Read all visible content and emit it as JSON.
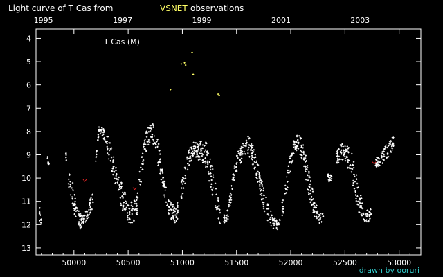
{
  "chart_data": {
    "type": "scatter",
    "title_prefix": "Light curve of T Cas from",
    "title_source": "VSNET",
    "title_suffix": "observations",
    "object_label": "T Cas (M)",
    "credit": "drawn by ooruri",
    "x_axis": {
      "range": [
        49650,
        53200
      ],
      "ticks": [
        50000,
        50500,
        51000,
        51500,
        52000,
        52500,
        53000
      ],
      "tick_labels": [
        "50000",
        "50500",
        "51000",
        "51500",
        "52000",
        "52500",
        "53000"
      ]
    },
    "top_axis": {
      "year_labels": [
        {
          "label": "1995",
          "x": 49718
        },
        {
          "label": "1997",
          "x": 50449
        },
        {
          "label": "1999",
          "x": 51179
        },
        {
          "label": "2001",
          "x": 51910
        },
        {
          "label": "2003",
          "x": 52640
        }
      ]
    },
    "y_axis": {
      "range": [
        3.6,
        13.3
      ],
      "inverted": true,
      "ticks": [
        4,
        5,
        6,
        7,
        8,
        9,
        10,
        11,
        12,
        13
      ],
      "tick_labels": [
        "4",
        "5",
        "6",
        "7",
        "8",
        "9",
        "10",
        "11",
        "12",
        "13"
      ]
    },
    "colors": {
      "background": "#000000",
      "axis": "#ffffff",
      "visual": "#ffffff",
      "highlight": "#ffff66",
      "fainter_than": "#dd2222",
      "credit": "#33cccc"
    },
    "series": [
      {
        "kind": "visual",
        "note": "envelope of visual estimates",
        "segments": [
          {
            "x": [
              49680,
              49695,
              49700
            ],
            "ymin": [
              11.0,
              11.4,
              11.2
            ],
            "ymax": [
              11.9,
              12.0,
              11.8
            ]
          },
          {
            "x": [
              49750,
              49760,
              49770
            ],
            "ymin": [
              9.0,
              9.1,
              9.3
            ],
            "ymax": [
              9.6,
              9.5,
              9.4
            ]
          },
          {
            "x": [
              49920,
              49930
            ],
            "ymin": [
              8.4,
              9.0
            ],
            "ymax": [
              8.6,
              9.6
            ]
          },
          {
            "x": [
              49950,
              49980,
              50000,
              50030,
              50060,
              50090,
              50120,
              50150,
              50180
            ],
            "ymin": [
              9.5,
              9.9,
              10.6,
              11.2,
              11.5,
              11.6,
              11.3,
              10.9,
              10.6
            ],
            "ymax": [
              10.4,
              10.9,
              11.5,
              12.0,
              12.2,
              12.0,
              11.8,
              11.6,
              11.2
            ]
          },
          {
            "x": [
              50200,
              50230,
              50260,
              50290,
              50320,
              50350,
              50380,
              50410,
              50440,
              50470,
              50500,
              50530,
              50560,
              50590
            ],
            "ymin": [
              9.2,
              7.8,
              7.8,
              7.9,
              8.3,
              8.7,
              9.2,
              9.7,
              10.2,
              10.6,
              10.9,
              11.0,
              10.9,
              10.6
            ],
            "ymax": [
              9.5,
              8.0,
              8.2,
              8.6,
              9.2,
              9.7,
              10.2,
              10.8,
              11.3,
              11.6,
              11.9,
              12.0,
              11.8,
              11.5
            ]
          },
          {
            "x": [
              50600,
              50630,
              50660,
              50690,
              50720,
              50750,
              50780,
              50810,
              50840,
              50870,
              50900,
              50930,
              50960
            ],
            "ymin": [
              9.8,
              8.8,
              8.1,
              7.7,
              7.6,
              7.9,
              8.5,
              9.4,
              10.2,
              10.8,
              11.1,
              11.2,
              11.0
            ],
            "ymax": [
              10.9,
              9.8,
              9.0,
              8.6,
              8.4,
              8.8,
              9.6,
              10.4,
              11.0,
              11.5,
              11.8,
              12.0,
              11.8
            ]
          },
          {
            "x": [
              50990,
              51020,
              51050,
              51080,
              51110,
              51140,
              51170,
              51200,
              51230,
              51260,
              51290,
              51320,
              51350
            ],
            "ymin": [
              10.2,
              9.4,
              8.8,
              8.6,
              8.4,
              8.5,
              8.4,
              8.3,
              8.5,
              9.0,
              9.8,
              10.6,
              11.3
            ],
            "ymax": [
              11.0,
              10.4,
              9.6,
              9.3,
              9.1,
              9.2,
              9.3,
              9.4,
              9.8,
              10.4,
              11.0,
              11.6,
              12.0
            ]
          },
          {
            "x": [
              51380,
              51400,
              51420,
              51440,
              51460,
              51490,
              51520,
              51550,
              51580,
              51610,
              51640,
              51670,
              51700,
              51730,
              51760,
              51790,
              51820,
              51850,
              51880,
              51900
            ],
            "ymin": [
              11.5,
              11.6,
              11.3,
              10.7,
              9.9,
              9.2,
              8.8,
              8.6,
              8.3,
              8.2,
              8.4,
              8.9,
              9.4,
              10.0,
              10.6,
              11.1,
              11.4,
              11.7,
              11.8,
              11.6
            ],
            "ymax": [
              12.0,
              12.0,
              11.8,
              11.3,
              10.7,
              9.9,
              9.5,
              9.3,
              9.1,
              9.0,
              9.3,
              9.8,
              10.4,
              11.0,
              11.5,
              11.9,
              12.1,
              12.2,
              12.3,
              12.0
            ]
          },
          {
            "x": [
              51920,
              51950,
              51980,
              52010,
              52040,
              52070,
              52100,
              52130,
              52160,
              52190,
              52220,
              52250,
              52280,
              52300
            ],
            "ymin": [
              11.0,
              10.2,
              9.4,
              8.7,
              8.2,
              8.1,
              8.3,
              8.8,
              9.5,
              10.2,
              10.8,
              11.3,
              11.5,
              11.4
            ],
            "ymax": [
              11.8,
              11.0,
              10.2,
              9.4,
              8.9,
              8.8,
              9.2,
              9.9,
              10.6,
              11.3,
              11.7,
              11.9,
              12.0,
              11.9
            ]
          },
          {
            "x": [
              52340,
              52360,
              52380
            ],
            "ymin": [
              9.8,
              9.9,
              9.8
            ],
            "ymax": [
              10.1,
              10.2,
              10.1
            ]
          },
          {
            "x": [
              52420,
              52450,
              52480,
              52510,
              52540,
              52570,
              52600,
              52630,
              52660,
              52690,
              52720,
              52750
            ],
            "ymin": [
              8.9,
              8.6,
              8.5,
              8.6,
              8.7,
              9.0,
              9.6,
              10.4,
              11.0,
              11.3,
              11.4,
              11.3
            ],
            "ymax": [
              9.4,
              9.3,
              9.2,
              9.4,
              9.7,
              10.2,
              10.9,
              11.5,
              11.8,
              11.9,
              11.9,
              11.6
            ]
          },
          {
            "x": [
              52780,
              52810,
              52840,
              52870,
              52900,
              52930,
              52950
            ],
            "ymin": [
              9.2,
              9.0,
              8.8,
              8.6,
              8.4,
              8.3,
              8.2
            ],
            "ymax": [
              9.6,
              9.5,
              9.4,
              9.2,
              9.1,
              8.9,
              8.7
            ]
          }
        ]
      },
      {
        "kind": "highlight",
        "points": [
          {
            "x": 50890,
            "y": 6.2
          },
          {
            "x": 50990,
            "y": 5.1
          },
          {
            "x": 51020,
            "y": 5.05
          },
          {
            "x": 51030,
            "y": 5.15
          },
          {
            "x": 51090,
            "y": 4.6
          },
          {
            "x": 51100,
            "y": 5.55
          },
          {
            "x": 51330,
            "y": 6.4
          },
          {
            "x": 51340,
            "y": 6.45
          }
        ]
      },
      {
        "kind": "fainter_than",
        "points": [
          {
            "x": 50100,
            "y": 10.1
          },
          {
            "x": 50560,
            "y": 10.45
          },
          {
            "x": 52770,
            "y": 9.35
          }
        ]
      }
    ]
  }
}
